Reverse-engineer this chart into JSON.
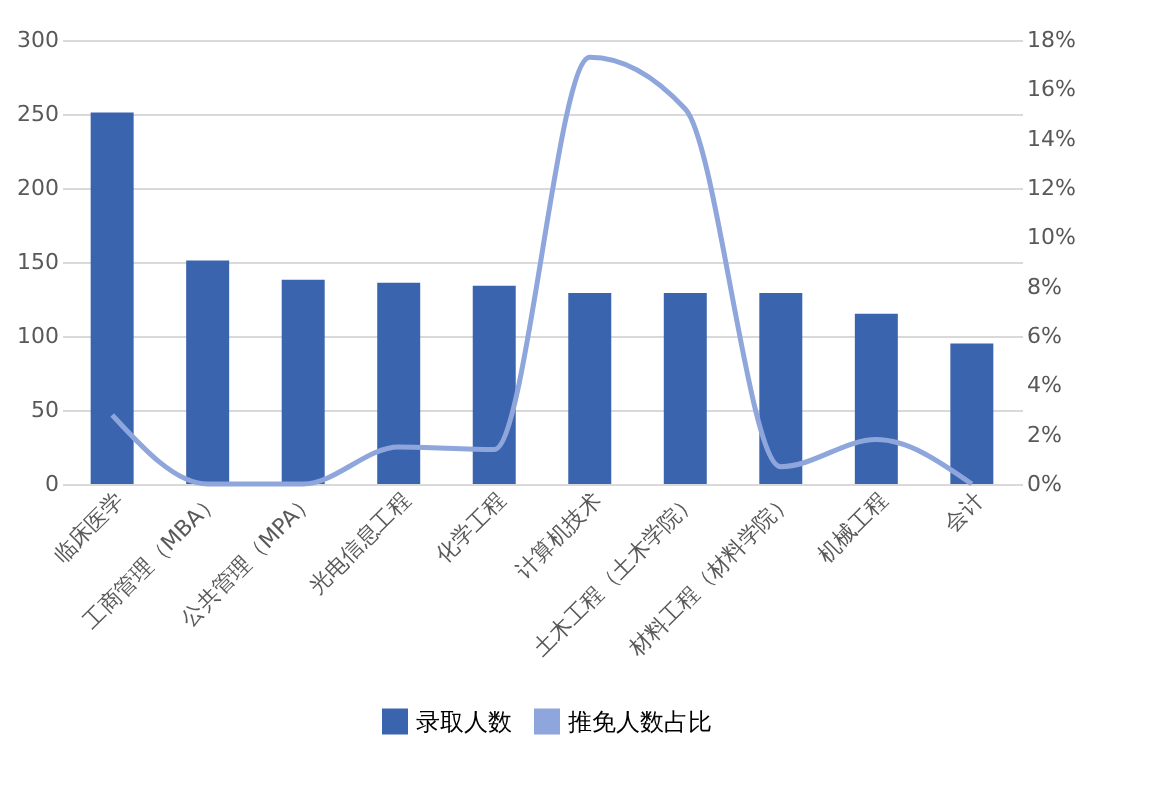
{
  "chart_data": {
    "type": "bar",
    "categories": [
      "临床医学",
      "工商管理（MBA）",
      "公共管理（MPA）",
      "光电信息工程",
      "化学工程",
      "计算机技术",
      "土木工程（土木学院）",
      "材料工程（材料学院）",
      "机械工程",
      "会计"
    ],
    "series": [
      {
        "name": "录取人数",
        "color": "#3a64ae",
        "values": [
          251,
          151,
          138,
          136,
          134,
          129,
          129,
          129,
          115,
          95
        ]
      },
      {
        "name": "推免人数占比",
        "color": "#8ea6dc",
        "type": "line",
        "axis": "y2",
        "values": [
          2.8,
          0,
          0,
          1.5,
          1.4,
          17.3,
          15.2,
          0.7,
          1.8,
          0
        ]
      }
    ],
    "ylim": [
      0,
      300
    ],
    "yticks": [
      0,
      50,
      100,
      150,
      200,
      250,
      300
    ],
    "y2lim": [
      0,
      18
    ],
    "y2ticks": [
      {
        "value": 0,
        "label": "0%"
      },
      {
        "value": 2,
        "label": "2%"
      },
      {
        "value": 4,
        "label": "4%"
      },
      {
        "value": 6,
        "label": "6%"
      },
      {
        "value": 8,
        "label": "8%"
      },
      {
        "value": 10,
        "label": "10%"
      },
      {
        "value": 12,
        "label": "12%"
      },
      {
        "value": 14,
        "label": "14%"
      },
      {
        "value": 16,
        "label": "16%"
      },
      {
        "value": 18,
        "label": "18%"
      }
    ],
    "grid": "y",
    "legend": "bottom",
    "marker": "none",
    "line_style": "solid"
  }
}
